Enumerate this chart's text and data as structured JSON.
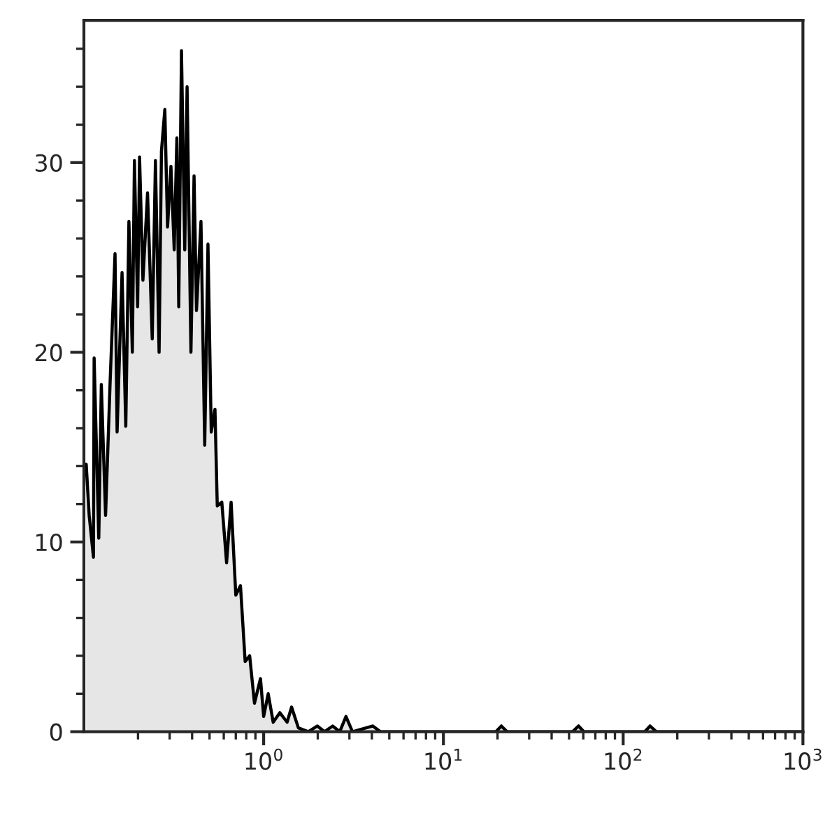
{
  "chart_data": {
    "type": "area",
    "log": "x",
    "grid": false,
    "legend": false,
    "xlim": [
      0.1,
      1000
    ],
    "ylim": [
      0,
      37.5
    ],
    "xticks": [
      {
        "value": 1,
        "label": "10$^{0}$"
      },
      {
        "value": 10,
        "label": "10$^{1}$"
      },
      {
        "value": 100,
        "label": "10$^{2}$"
      },
      {
        "value": 1000,
        "label": "10$^{3}$"
      }
    ],
    "yticks": [
      0,
      10,
      20,
      30
    ],
    "series": [
      {
        "color": "#000000",
        "x": [
          0.103,
          0.107,
          0.113,
          0.114,
          0.121,
          0.125,
          0.132,
          0.14,
          0.149,
          0.153,
          0.163,
          0.171,
          0.178,
          0.186,
          0.191,
          0.199,
          0.204,
          0.213,
          0.226,
          0.24,
          0.25,
          0.262,
          0.27,
          0.282,
          0.292,
          0.305,
          0.318,
          0.329,
          0.337,
          0.349,
          0.364,
          0.375,
          0.394,
          0.41,
          0.423,
          0.448,
          0.47,
          0.49,
          0.511,
          0.536,
          0.552,
          0.585,
          0.622,
          0.659,
          0.7,
          0.743,
          0.789,
          0.836,
          0.889,
          0.96,
          1.0,
          1.06,
          1.13,
          1.23,
          1.35,
          1.43,
          1.56,
          1.77,
          1.99,
          2.18,
          2.42,
          2.65,
          2.87,
          3.12,
          4.05,
          4.46,
          19.6,
          21.0,
          22.6,
          52.3,
          56.5,
          60.4,
          132,
          141,
          153,
          1000
        ],
        "values": [
          14.1,
          11.4,
          9.2,
          19.7,
          10.2,
          18.3,
          11.4,
          18.5,
          25.2,
          15.8,
          24.2,
          16.1,
          26.9,
          20.0,
          30.1,
          22.4,
          30.3,
          23.8,
          28.4,
          20.7,
          30.1,
          20.0,
          30.6,
          32.8,
          26.6,
          29.8,
          25.4,
          31.3,
          22.4,
          35.9,
          25.4,
          34.0,
          20.0,
          29.3,
          22.2,
          26.9,
          15.1,
          25.7,
          15.8,
          17.0,
          11.9,
          12.1,
          8.9,
          12.1,
          7.2,
          7.7,
          3.7,
          4.0,
          1.5,
          2.8,
          0.8,
          2.0,
          0.5,
          1.0,
          0.5,
          1.3,
          0.2,
          0,
          0.3,
          0,
          0.3,
          0,
          0.8,
          0,
          0.3,
          0,
          0,
          0.3,
          0,
          0,
          0.3,
          0,
          0,
          0.3,
          0,
          0
        ]
      }
    ]
  }
}
